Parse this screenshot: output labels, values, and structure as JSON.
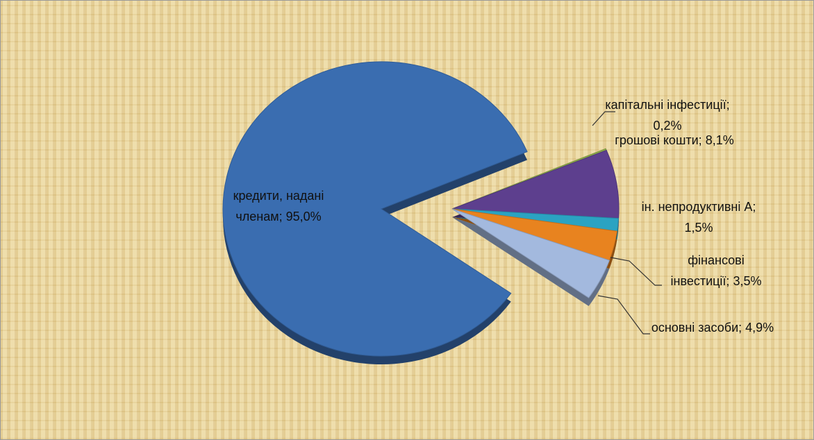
{
  "chart_data": {
    "type": "pie",
    "categories": [
      "кредити, надані членам;",
      "капітальні інфестиції;",
      "грошові кошти;",
      "ін. непродуктивні А;",
      "фінансові інвестиції;",
      "основні засоби;"
    ],
    "values": [
      95.0,
      0.2,
      8.1,
      1.5,
      3.5,
      4.9
    ],
    "value_labels": [
      "95,0%",
      "0,2%",
      "8,1%",
      "1,5%",
      "3,5%",
      "4,9%"
    ],
    "colors": [
      "#3a6db0",
      "#8cab48",
      "#5d3f8e",
      "#2ba3c2",
      "#e8831f",
      "#a3b9de"
    ]
  }
}
